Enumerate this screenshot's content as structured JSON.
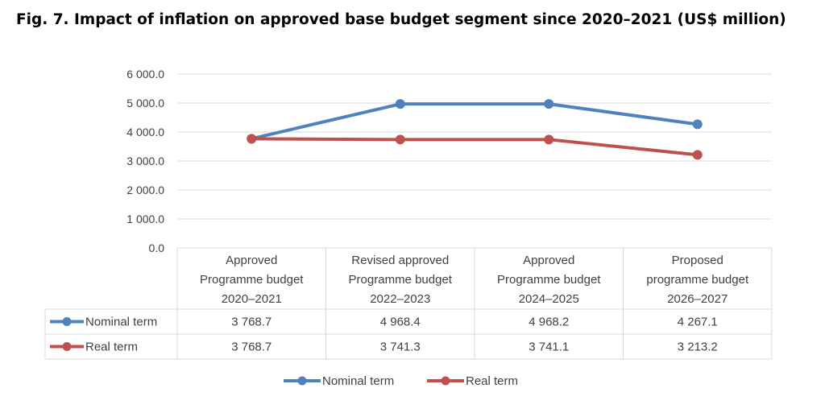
{
  "title": "Fig. 7. Impact of inflation on approved base budget segment since 2020–2021 (US$ million)",
  "chart_data": {
    "type": "line",
    "title": "Fig. 7. Impact of inflation on approved base budget segment since 2020–2021 (US$ million)",
    "ylim": [
      0,
      6000
    ],
    "yticks": [
      0,
      1000,
      2000,
      3000,
      4000,
      5000,
      6000
    ],
    "ytick_labels": [
      "0.0",
      "1 000.0",
      "2 000.0",
      "3 000.0",
      "4 000.0",
      "5 000.0",
      "6 000.0"
    ],
    "categories": [
      [
        "Approved",
        "Programme budget",
        "2020–2021"
      ],
      [
        "Revised approved",
        "Programme budget",
        "2022–2023"
      ],
      [
        "Approved",
        "Programme budget",
        "2024–2025"
      ],
      [
        "Proposed",
        "programme budget",
        "2026–2027"
      ]
    ],
    "grid": true,
    "legend_position": "bottom",
    "data_table": true,
    "series": [
      {
        "name": "Nominal term",
        "color": "#4F81BD",
        "values": [
          3768.7,
          4968.4,
          4968.2,
          4267.1
        ],
        "labels": [
          "3 768.7",
          "4 968.4",
          "4 968.2",
          "4 267.1"
        ]
      },
      {
        "name": "Real term",
        "color": "#C0504D",
        "values": [
          3768.7,
          3741.3,
          3741.1,
          3213.2
        ],
        "labels": [
          "3 768.7",
          "3 741.3",
          "3 741.1",
          "3 213.2"
        ]
      }
    ]
  }
}
